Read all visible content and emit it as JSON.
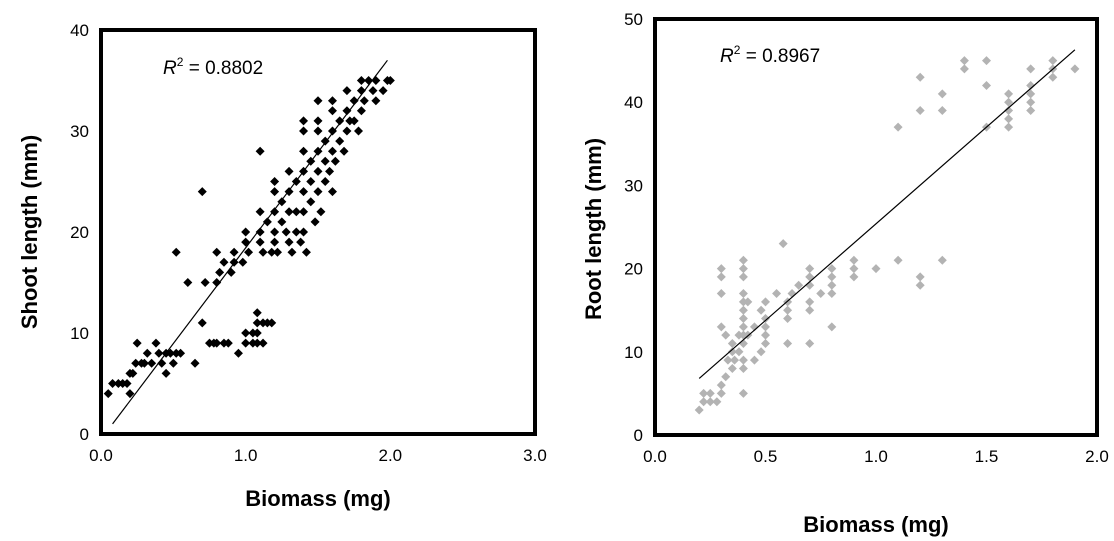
{
  "chart_data": [
    {
      "type": "scatter",
      "title": "",
      "xlabel": "Biomass (mg)",
      "ylabel": "Shoot length (mm)",
      "xlim": [
        0,
        3.0
      ],
      "ylim": [
        0,
        40
      ],
      "x_ticks": [
        "0.0",
        "1.0",
        "2.0",
        "3.0"
      ],
      "y_ticks": [
        "0",
        "10",
        "20",
        "30",
        "40"
      ],
      "annotation": {
        "r_symbol": "R",
        "sup": "2",
        "text": " = 0.8802"
      },
      "marker": "diamond",
      "marker_color": "#000000",
      "grid": false,
      "trendline": {
        "x": [
          0.08,
          1.98
        ],
        "y": [
          1,
          37
        ]
      },
      "points": [
        [
          0.05,
          4
        ],
        [
          0.08,
          5
        ],
        [
          0.12,
          5
        ],
        [
          0.15,
          5
        ],
        [
          0.18,
          5
        ],
        [
          0.2,
          4
        ],
        [
          0.2,
          6
        ],
        [
          0.22,
          6
        ],
        [
          0.24,
          7
        ],
        [
          0.25,
          9
        ],
        [
          0.28,
          7
        ],
        [
          0.3,
          7
        ],
        [
          0.32,
          8
        ],
        [
          0.35,
          7
        ],
        [
          0.38,
          9
        ],
        [
          0.4,
          8
        ],
        [
          0.42,
          7
        ],
        [
          0.45,
          6
        ],
        [
          0.45,
          8
        ],
        [
          0.48,
          8
        ],
        [
          0.5,
          7
        ],
        [
          0.52,
          8
        ],
        [
          0.55,
          8
        ],
        [
          0.52,
          18
        ],
        [
          0.6,
          15
        ],
        [
          0.65,
          7
        ],
        [
          0.7,
          11
        ],
        [
          0.7,
          24
        ],
        [
          0.72,
          15
        ],
        [
          0.75,
          9
        ],
        [
          0.78,
          9
        ],
        [
          0.8,
          9
        ],
        [
          0.8,
          15
        ],
        [
          0.8,
          18
        ],
        [
          0.82,
          16
        ],
        [
          0.85,
          9
        ],
        [
          0.85,
          17
        ],
        [
          0.88,
          9
        ],
        [
          0.9,
          16
        ],
        [
          0.92,
          17
        ],
        [
          0.92,
          18
        ],
        [
          0.95,
          8
        ],
        [
          0.98,
          17
        ],
        [
          1.0,
          9
        ],
        [
          1.0,
          10
        ],
        [
          1.0,
          19
        ],
        [
          1.0,
          20
        ],
        [
          1.02,
          18
        ],
        [
          1.05,
          9
        ],
        [
          1.05,
          10
        ],
        [
          1.08,
          9
        ],
        [
          1.08,
          10
        ],
        [
          1.08,
          12
        ],
        [
          1.08,
          11
        ],
        [
          1.1,
          19
        ],
        [
          1.1,
          20
        ],
        [
          1.1,
          22
        ],
        [
          1.1,
          28
        ],
        [
          1.12,
          9
        ],
        [
          1.12,
          11
        ],
        [
          1.12,
          18
        ],
        [
          1.15,
          11
        ],
        [
          1.15,
          21
        ],
        [
          1.18,
          11
        ],
        [
          1.18,
          18
        ],
        [
          1.2,
          19
        ],
        [
          1.2,
          20
        ],
        [
          1.2,
          22
        ],
        [
          1.2,
          24
        ],
        [
          1.2,
          25
        ],
        [
          1.22,
          18
        ],
        [
          1.25,
          21
        ],
        [
          1.25,
          23
        ],
        [
          1.28,
          20
        ],
        [
          1.3,
          19
        ],
        [
          1.3,
          22
        ],
        [
          1.3,
          24
        ],
        [
          1.3,
          26
        ],
        [
          1.32,
          18
        ],
        [
          1.35,
          20
        ],
        [
          1.35,
          22
        ],
        [
          1.35,
          25
        ],
        [
          1.38,
          19
        ],
        [
          1.4,
          20
        ],
        [
          1.4,
          22
        ],
        [
          1.4,
          24
        ],
        [
          1.4,
          26
        ],
        [
          1.4,
          28
        ],
        [
          1.4,
          30
        ],
        [
          1.4,
          31
        ],
        [
          1.42,
          18
        ],
        [
          1.45,
          23
        ],
        [
          1.45,
          25
        ],
        [
          1.45,
          27
        ],
        [
          1.48,
          21
        ],
        [
          1.5,
          24
        ],
        [
          1.5,
          26
        ],
        [
          1.5,
          28
        ],
        [
          1.5,
          30
        ],
        [
          1.5,
          31
        ],
        [
          1.5,
          33
        ],
        [
          1.52,
          22
        ],
        [
          1.55,
          25
        ],
        [
          1.55,
          27
        ],
        [
          1.55,
          29
        ],
        [
          1.58,
          26
        ],
        [
          1.6,
          24
        ],
        [
          1.6,
          28
        ],
        [
          1.6,
          30
        ],
        [
          1.6,
          32
        ],
        [
          1.6,
          33
        ],
        [
          1.62,
          27
        ],
        [
          1.65,
          29
        ],
        [
          1.65,
          31
        ],
        [
          1.68,
          28
        ],
        [
          1.7,
          30
        ],
        [
          1.7,
          32
        ],
        [
          1.7,
          34
        ],
        [
          1.72,
          31
        ],
        [
          1.75,
          31
        ],
        [
          1.75,
          33
        ],
        [
          1.78,
          30
        ],
        [
          1.8,
          32
        ],
        [
          1.8,
          34
        ],
        [
          1.8,
          35
        ],
        [
          1.82,
          33
        ],
        [
          1.85,
          35
        ],
        [
          1.88,
          34
        ],
        [
          1.9,
          33
        ],
        [
          1.9,
          35
        ],
        [
          1.95,
          34
        ],
        [
          1.98,
          35
        ],
        [
          2.0,
          35
        ]
      ]
    },
    {
      "type": "scatter",
      "title": "",
      "xlabel": "Biomass (mg)",
      "ylabel": "Root length (mm)",
      "xlim": [
        0,
        2.0
      ],
      "ylim": [
        0,
        50
      ],
      "x_ticks": [
        "0.0",
        "0.5",
        "1.0",
        "1.5",
        "2.0"
      ],
      "y_ticks": [
        "0",
        "10",
        "20",
        "30",
        "40",
        "50"
      ],
      "annotation": {
        "r_symbol": "R",
        "sup": "2",
        "text": " = 0.8967"
      },
      "marker": "diamond",
      "marker_color": "#b3b3b3",
      "grid": false,
      "trendline": {
        "x": [
          0.2,
          1.9
        ],
        "y": [
          6.8,
          46.3
        ]
      },
      "points": [
        [
          0.2,
          3
        ],
        [
          0.22,
          4
        ],
        [
          0.22,
          5
        ],
        [
          0.25,
          4
        ],
        [
          0.25,
          5
        ],
        [
          0.28,
          4
        ],
        [
          0.3,
          5
        ],
        [
          0.3,
          6
        ],
        [
          0.3,
          17
        ],
        [
          0.3,
          19
        ],
        [
          0.3,
          20
        ],
        [
          0.3,
          13
        ],
        [
          0.32,
          7
        ],
        [
          0.32,
          12
        ],
        [
          0.33,
          9
        ],
        [
          0.35,
          8
        ],
        [
          0.35,
          11
        ],
        [
          0.35,
          10
        ],
        [
          0.36,
          9
        ],
        [
          0.38,
          12
        ],
        [
          0.38,
          10
        ],
        [
          0.4,
          5
        ],
        [
          0.4,
          8
        ],
        [
          0.4,
          9
        ],
        [
          0.4,
          11
        ],
        [
          0.4,
          12
        ],
        [
          0.4,
          13
        ],
        [
          0.4,
          14
        ],
        [
          0.4,
          15
        ],
        [
          0.4,
          16
        ],
        [
          0.4,
          17
        ],
        [
          0.4,
          19
        ],
        [
          0.4,
          20
        ],
        [
          0.4,
          21
        ],
        [
          0.42,
          12
        ],
        [
          0.42,
          16
        ],
        [
          0.45,
          9
        ],
        [
          0.45,
          13
        ],
        [
          0.48,
          10
        ],
        [
          0.48,
          15
        ],
        [
          0.5,
          11
        ],
        [
          0.5,
          12
        ],
        [
          0.5,
          13
        ],
        [
          0.5,
          14
        ],
        [
          0.5,
          16
        ],
        [
          0.55,
          17
        ],
        [
          0.58,
          23
        ],
        [
          0.6,
          11
        ],
        [
          0.6,
          14
        ],
        [
          0.6,
          15
        ],
        [
          0.6,
          16
        ],
        [
          0.62,
          17
        ],
        [
          0.65,
          18
        ],
        [
          0.7,
          11
        ],
        [
          0.7,
          15
        ],
        [
          0.7,
          16
        ],
        [
          0.7,
          18
        ],
        [
          0.7,
          19
        ],
        [
          0.7,
          20
        ],
        [
          0.75,
          17
        ],
        [
          0.8,
          13
        ],
        [
          0.8,
          17
        ],
        [
          0.8,
          18
        ],
        [
          0.8,
          19
        ],
        [
          0.8,
          20
        ],
        [
          0.9,
          19
        ],
        [
          0.9,
          20
        ],
        [
          0.9,
          21
        ],
        [
          1.0,
          20
        ],
        [
          1.1,
          21
        ],
        [
          1.1,
          37
        ],
        [
          1.2,
          18
        ],
        [
          1.2,
          19
        ],
        [
          1.2,
          39
        ],
        [
          1.2,
          43
        ],
        [
          1.3,
          21
        ],
        [
          1.3,
          39
        ],
        [
          1.3,
          41
        ],
        [
          1.4,
          44
        ],
        [
          1.4,
          45
        ],
        [
          1.5,
          37
        ],
        [
          1.5,
          42
        ],
        [
          1.5,
          45
        ],
        [
          1.6,
          37
        ],
        [
          1.6,
          38
        ],
        [
          1.6,
          39
        ],
        [
          1.6,
          40
        ],
        [
          1.6,
          41
        ],
        [
          1.7,
          39
        ],
        [
          1.7,
          40
        ],
        [
          1.7,
          41
        ],
        [
          1.7,
          42
        ],
        [
          1.7,
          44
        ],
        [
          1.8,
          43
        ],
        [
          1.8,
          44
        ],
        [
          1.8,
          45
        ],
        [
          1.9,
          44
        ]
      ]
    }
  ]
}
